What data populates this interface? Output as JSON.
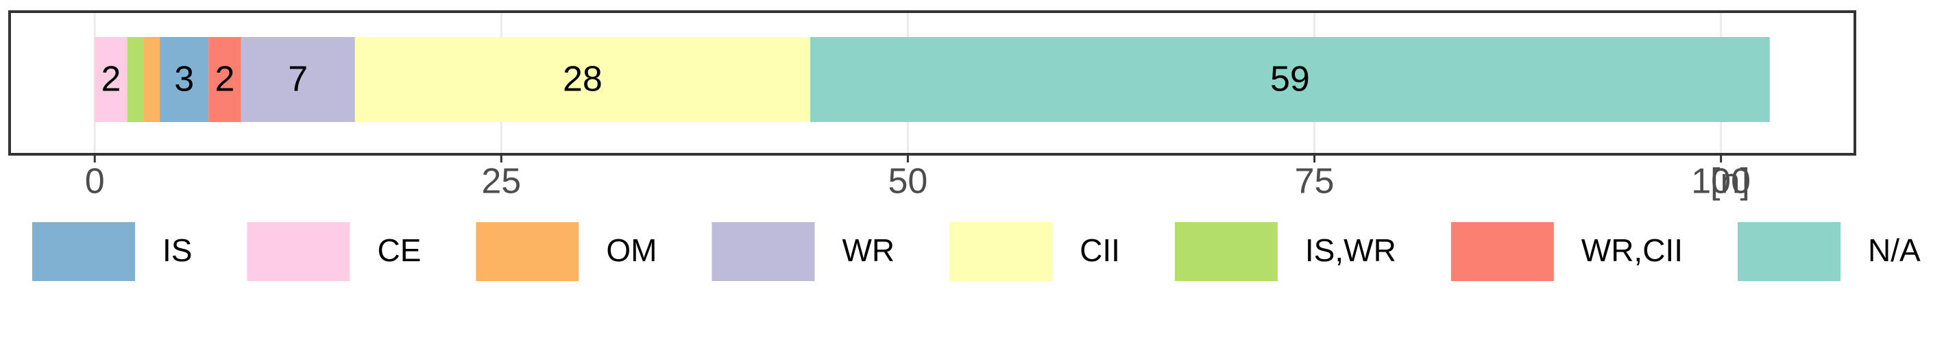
{
  "chart_data": {
    "type": "stacked-bar-horizontal",
    "series": [
      {
        "name": "CE",
        "color": "#fccde5",
        "values": [
          2
        ]
      },
      {
        "name": "IS,WR",
        "color": "#b3de69",
        "values": [
          1
        ]
      },
      {
        "name": "OM",
        "color": "#fdb462",
        "values": [
          1
        ]
      },
      {
        "name": "IS",
        "color": "#80b1d3",
        "values": [
          3
        ]
      },
      {
        "name": "WR,CII",
        "color": "#fb8072",
        "values": [
          2
        ]
      },
      {
        "name": "WR",
        "color": "#bebada",
        "values": [
          7
        ]
      },
      {
        "name": "CII",
        "color": "#ffffb3",
        "values": [
          28
        ]
      },
      {
        "name": "N/A",
        "color": "#8dd3c7",
        "values": [
          59
        ]
      }
    ],
    "legend_order": [
      3,
      0,
      2,
      5,
      6,
      1,
      4,
      7
    ],
    "x_label": "[n]",
    "xlim": [
      -5.15,
      108.15
    ],
    "xticks": [
      0,
      25,
      50,
      75,
      100
    ],
    "grid": true,
    "legend": "bottom"
  }
}
